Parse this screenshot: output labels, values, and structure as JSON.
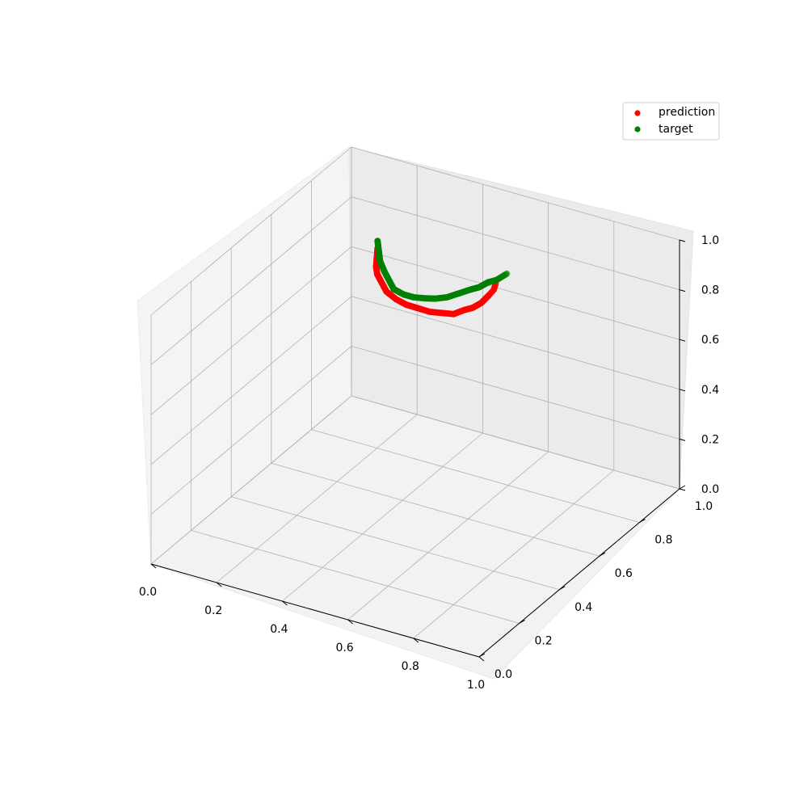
{
  "chart_data": {
    "type": "scatter",
    "projection": "3d",
    "grid": true,
    "legend_position": "top-right",
    "xlim": [
      0,
      1
    ],
    "ylim": [
      0,
      1
    ],
    "zlim": [
      0,
      1
    ],
    "x_ticks": [
      "0.0",
      "0.2",
      "0.4",
      "0.6",
      "0.8",
      "1.0"
    ],
    "y_ticks": [
      "0.0",
      "0.2",
      "0.4",
      "0.6",
      "0.8",
      "1.0"
    ],
    "z_ticks": [
      "0.0",
      "0.2",
      "0.4",
      "0.6",
      "0.8",
      "1.0"
    ],
    "series": [
      {
        "name": "prediction",
        "color": "#ff0000",
        "x": [
          0.55,
          0.55,
          0.54,
          0.53,
          0.51,
          0.49,
          0.47,
          0.44,
          0.41,
          0.38,
          0.35,
          0.32,
          0.29,
          0.27,
          0.25,
          0.24,
          0.23,
          0.22
        ],
        "y": [
          0.82,
          0.81,
          0.8,
          0.78,
          0.77,
          0.76,
          0.74,
          0.73,
          0.72,
          0.71,
          0.7,
          0.7,
          0.7,
          0.71,
          0.72,
          0.73,
          0.75,
          0.77
        ],
        "z": [
          0.78,
          0.76,
          0.74,
          0.72,
          0.7,
          0.69,
          0.68,
          0.68,
          0.68,
          0.69,
          0.7,
          0.71,
          0.73,
          0.75,
          0.77,
          0.79,
          0.81,
          0.83
        ]
      },
      {
        "name": "target",
        "color": "#008000",
        "x": [
          0.59,
          0.58,
          0.57,
          0.55,
          0.53,
          0.51,
          0.48,
          0.45,
          0.42,
          0.39,
          0.36,
          0.33,
          0.3,
          0.28,
          0.26,
          0.24,
          0.23,
          0.22
        ],
        "y": [
          0.81,
          0.8,
          0.79,
          0.78,
          0.77,
          0.76,
          0.75,
          0.74,
          0.73,
          0.73,
          0.72,
          0.72,
          0.72,
          0.73,
          0.74,
          0.75,
          0.76,
          0.77
        ],
        "z": [
          0.84,
          0.83,
          0.82,
          0.81,
          0.79,
          0.78,
          0.76,
          0.74,
          0.73,
          0.72,
          0.72,
          0.72,
          0.73,
          0.75,
          0.77,
          0.8,
          0.83,
          0.86
        ]
      }
    ]
  }
}
